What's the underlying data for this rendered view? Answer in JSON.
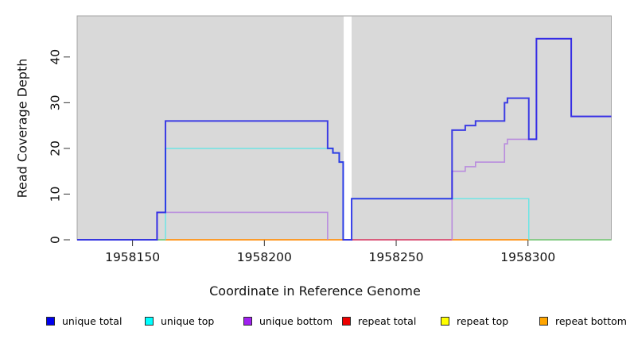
{
  "chart_data": {
    "type": "line",
    "step": true,
    "title": "",
    "xlabel": "Coordinate in Reference Genome",
    "ylabel": "Read Coverage Depth",
    "xlim": [
      1958129,
      1958331.6
    ],
    "ylim": [
      0,
      49
    ],
    "xticks": [
      1958150,
      1958200,
      1958250,
      1958300
    ],
    "yticks": [
      0,
      10,
      20,
      30,
      40
    ],
    "grid": false,
    "panel_bg": "#d9d9d9",
    "panel_border": "#a3a3a3",
    "gap_mask": {
      "x0": 1958230.1,
      "x1": 1958233.1,
      "color": "#ffffff",
      "note": "white no-data band interrupting the panel"
    },
    "baseline_segments": [
      {
        "x0": 1958159.3,
        "x1": 1958162.5,
        "color": "#7cc87c"
      },
      {
        "x0": 1958162.5,
        "x1": 1958230.0,
        "color": "#ff9010"
      },
      {
        "x0": 1958233.1,
        "x1": 1958271.2,
        "color": "#d84a6f"
      },
      {
        "x0": 1958271.2,
        "x1": 1958300.3,
        "color": "#ff9010"
      },
      {
        "x0": 1958300.3,
        "x1": 1958331.6,
        "color": "#7cc87c"
      }
    ],
    "series": [
      {
        "name": "unique bottom",
        "color": "#b583de",
        "opacity": 0.9,
        "width": 1.6,
        "paths": [
          [
            [
              1958159.3,
              0
            ],
            [
              1958159.3,
              6
            ],
            [
              1958224,
              6
            ],
            [
              1958224,
              0
            ]
          ],
          [
            [
              1958271.2,
              0
            ],
            [
              1958271.2,
              15
            ],
            [
              1958276.2,
              15
            ],
            [
              1958276.2,
              16
            ],
            [
              1958280.1,
              16
            ],
            [
              1958280.1,
              17
            ],
            [
              1958291.1,
              17
            ],
            [
              1958291.1,
              21
            ],
            [
              1958292.2,
              21
            ],
            [
              1958292.2,
              22
            ],
            [
              1958303.2,
              22
            ],
            [
              1958303.2,
              44
            ],
            [
              1958316.4,
              44
            ],
            [
              1958316.4,
              27
            ],
            [
              1958331.6,
              27
            ]
          ]
        ]
      },
      {
        "name": "unique top",
        "color": "#49e8e8",
        "opacity": 0.8,
        "width": 1.4,
        "paths": [
          [
            [
              1958162.5,
              0
            ],
            [
              1958162.5,
              20
            ],
            [
              1958226,
              20
            ],
            [
              1958226,
              19
            ],
            [
              1958228.4,
              19
            ],
            [
              1958228.4,
              17
            ],
            [
              1958229.9,
              17
            ],
            [
              1958229.9,
              0
            ]
          ],
          [
            [
              1958233.1,
              0
            ],
            [
              1958233.1,
              9
            ],
            [
              1958300.3,
              9
            ],
            [
              1958300.3,
              0
            ]
          ]
        ]
      },
      {
        "name": "unique total",
        "color": "#1414e6",
        "opacity": 0.8,
        "width": 2,
        "paths": [
          [
            [
              1958129,
              0
            ],
            [
              1958159.3,
              0
            ],
            [
              1958159.3,
              6
            ],
            [
              1958162.5,
              6
            ],
            [
              1958162.5,
              26
            ],
            [
              1958224,
              26
            ],
            [
              1958224,
              20
            ],
            [
              1958226,
              20
            ],
            [
              1958226,
              19
            ],
            [
              1958228.4,
              19
            ],
            [
              1958228.4,
              17
            ],
            [
              1958229.9,
              17
            ],
            [
              1958229.9,
              0
            ],
            [
              1958233.1,
              0
            ],
            [
              1958233.1,
              9
            ],
            [
              1958271.2,
              9
            ],
            [
              1958271.2,
              24
            ],
            [
              1958276.2,
              24
            ],
            [
              1958276.2,
              25
            ],
            [
              1958280.1,
              25
            ],
            [
              1958280.1,
              26
            ],
            [
              1958291.1,
              26
            ],
            [
              1958291.1,
              30
            ],
            [
              1958292.2,
              30
            ],
            [
              1958292.2,
              31
            ],
            [
              1958300.3,
              31
            ],
            [
              1958300.3,
              22
            ],
            [
              1958303.2,
              22
            ],
            [
              1958303.2,
              44
            ],
            [
              1958316.4,
              44
            ],
            [
              1958316.4,
              27
            ],
            [
              1958331.6,
              27
            ]
          ]
        ]
      }
    ]
  },
  "legend": {
    "items": [
      {
        "label": "unique total",
        "color": "#0000ee"
      },
      {
        "label": "unique top",
        "color": "#00ffff"
      },
      {
        "label": "unique bottom",
        "color": "#a020f0"
      },
      {
        "label": "repeat total",
        "color": "#ee0000"
      },
      {
        "label": "repeat top",
        "color": "#ffff00"
      },
      {
        "label": "repeat bottom",
        "color": "#ffa500"
      }
    ]
  }
}
